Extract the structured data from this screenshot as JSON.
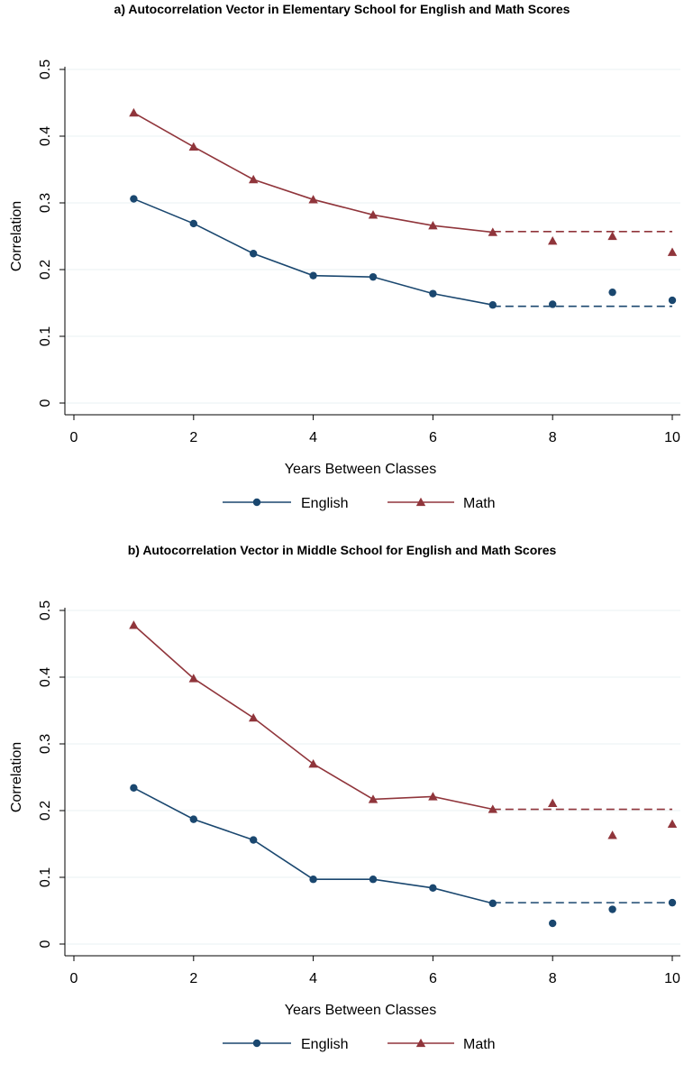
{
  "chart_data": [
    {
      "type": "line",
      "title": "a) Autocorrelation Vector in Elementary School for English and Math Scores",
      "xlabel": "Years Between Classes",
      "ylabel": "Correlation",
      "xlim": [
        0,
        10
      ],
      "ylim": [
        0,
        0.5
      ],
      "xticks": [
        "0",
        "2",
        "4",
        "6",
        "8",
        "10"
      ],
      "yticks": [
        "0",
        "0.1",
        "0.2",
        "0.3",
        "0.4",
        "0.5"
      ],
      "grid": "horizontal",
      "legend_position": "bottom",
      "series": [
        {
          "name": "English",
          "color": "#1a476f",
          "marker": "circle",
          "line": {
            "x": [
              1,
              2,
              3,
              4,
              5,
              6,
              7
            ],
            "y": [
              0.306,
              0.269,
              0.224,
              0.191,
              0.189,
              0.164,
              0.147
            ]
          },
          "points": {
            "x": [
              8,
              9,
              10
            ],
            "y": [
              0.148,
              0.166,
              0.154
            ]
          },
          "dashed_level": {
            "x": [
              7,
              10
            ],
            "y": 0.145
          }
        },
        {
          "name": "Math",
          "color": "#90353b",
          "marker": "triangle",
          "line": {
            "x": [
              1,
              2,
              3,
              4,
              5,
              6,
              7
            ],
            "y": [
              0.435,
              0.384,
              0.335,
              0.305,
              0.282,
              0.266,
              0.256
            ]
          },
          "points": {
            "x": [
              8,
              9,
              10
            ],
            "y": [
              0.243,
              0.25,
              0.226
            ]
          },
          "dashed_level": {
            "x": [
              7,
              10
            ],
            "y": 0.257
          }
        }
      ]
    },
    {
      "type": "line",
      "title": "b) Autocorrelation Vector in Middle School for English and Math Scores",
      "xlabel": "Years Between Classes",
      "ylabel": "Correlation",
      "xlim": [
        0,
        10
      ],
      "ylim": [
        0,
        0.5
      ],
      "xticks": [
        "0",
        "2",
        "4",
        "6",
        "8",
        "10"
      ],
      "yticks": [
        "0",
        "0.1",
        "0.2",
        "0.3",
        "0.4",
        "0.5"
      ],
      "grid": "horizontal",
      "legend_position": "bottom",
      "series": [
        {
          "name": "English",
          "color": "#1a476f",
          "marker": "circle",
          "line": {
            "x": [
              1,
              2,
              3,
              4,
              5,
              6,
              7
            ],
            "y": [
              0.234,
              0.187,
              0.156,
              0.097,
              0.097,
              0.084,
              0.061
            ]
          },
          "points": {
            "x": [
              8,
              9,
              10
            ],
            "y": [
              0.031,
              0.052,
              0.062
            ]
          },
          "dashed_level": {
            "x": [
              7,
              10
            ],
            "y": 0.062
          }
        },
        {
          "name": "Math",
          "color": "#90353b",
          "marker": "triangle",
          "line": {
            "x": [
              1,
              2,
              3,
              4,
              5,
              6,
              7
            ],
            "y": [
              0.478,
              0.398,
              0.339,
              0.27,
              0.217,
              0.221,
              0.202
            ]
          },
          "points": {
            "x": [
              8,
              9,
              10
            ],
            "y": [
              0.211,
              0.163,
              0.18
            ]
          },
          "dashed_level": {
            "x": [
              7,
              10
            ],
            "y": 0.202
          }
        }
      ]
    }
  ]
}
